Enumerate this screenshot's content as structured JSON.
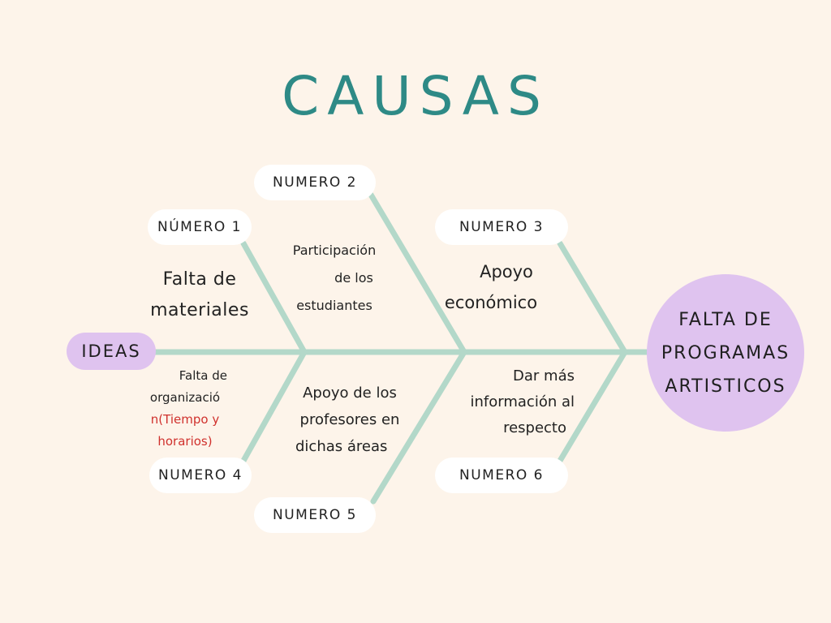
{
  "title": "CAUSAS",
  "head": "IDEAS",
  "effect": {
    "lines": [
      "FALTA DE",
      "PROGRAMAS",
      "ARTISTICOS"
    ]
  },
  "causes": [
    {
      "label": "NÚMERO 1",
      "text_lines": [
        "Falta de",
        "materiales"
      ]
    },
    {
      "label": "NUMERO 2",
      "text_lines": [
        "Participación",
        "de los",
        "estudiantes"
      ]
    },
    {
      "label": "NUMERO 3",
      "text_lines": [
        "Apoyo",
        "económico"
      ]
    },
    {
      "label": "NUMERO 4",
      "text_lines": [
        "Falta de",
        "organizació",
        "n(Tiempo y",
        "horarios)"
      ]
    },
    {
      "label": "NUMERO 5",
      "text_lines": [
        "Apoyo de los",
        "profesores en",
        "dichas áreas"
      ]
    },
    {
      "label": "NUMERO 6",
      "text_lines": [
        "Dar más",
        "información al",
        "respecto"
      ]
    }
  ],
  "colors": {
    "background": "#fdf4ea",
    "title": "#2e8a86",
    "bone": "#b3d8c9",
    "highlight": "#dfc3ef",
    "pill": "#ffffff",
    "note_accent": "#d0312d"
  }
}
